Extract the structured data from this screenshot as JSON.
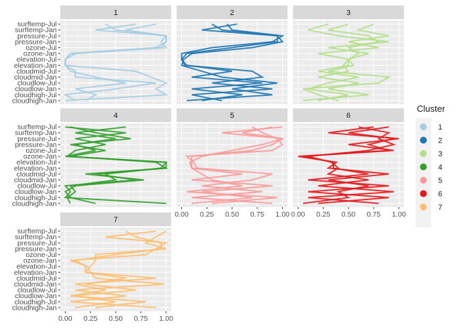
{
  "chart_data": {
    "type": "line",
    "subtype": "parallel-coordinates-faceted",
    "variables": [
      "cloudhigh-Jan",
      "cloudhigh-Jul",
      "cloudlow-Jan",
      "cloudlow-Jul",
      "cloudmid-Jan",
      "cloudmid-Jul",
      "elevation-Jan",
      "elevation-Jul",
      "ozone-Jan",
      "ozone-Jul",
      "pressure-Jan",
      "pressure-Jul",
      "surftemp-Jan",
      "surftemp-Jul"
    ],
    "x_ticks": [
      "0.00",
      "0.25",
      "0.50",
      "0.75",
      "1.00"
    ],
    "xlim": [
      0,
      1
    ],
    "grid": true,
    "legend": {
      "title": "Cluster",
      "placement": "right",
      "entries": [
        "1",
        "2",
        "3",
        "4",
        "5",
        "6",
        "7"
      ]
    },
    "colors": {
      "1": "#A6CEE3",
      "2": "#1F78B4",
      "3": "#B2DF8A",
      "4": "#33A02C",
      "5": "#FB9A99",
      "6": "#E31A1C",
      "7": "#FDBF6F"
    },
    "panels": [
      {
        "label": "1",
        "lines": [
          [
            0.1,
            0.0,
            0.5,
            0.9,
            0.1,
            0.1,
            0.0,
            0.0,
            0.05,
            0.95,
            1.0,
            1.0,
            0.5,
            0.4
          ],
          [
            0.0,
            1.0,
            0.9,
            1.0,
            0.85,
            0.7,
            0.0,
            0.0,
            0.05,
            0.9,
            1.0,
            1.0,
            0.3,
            0.7
          ],
          [
            0.2,
            0.3,
            0.1,
            0.6,
            0.3,
            0.05,
            0.0,
            0.0,
            0.1,
            1.0,
            0.95,
            1.0,
            0.6,
            0.9
          ]
        ]
      },
      {
        "label": "2",
        "lines": [
          [
            0.2,
            0.6,
            0.1,
            0.8,
            0.1,
            0.5,
            0.05,
            0.0,
            0.05,
            0.5,
            0.95,
            0.95,
            0.4,
            0.3
          ],
          [
            0.05,
            0.9,
            0.5,
            0.95,
            0.4,
            0.2,
            0.0,
            0.02,
            0.1,
            0.7,
            1.0,
            0.95,
            0.2,
            0.55
          ],
          [
            0.4,
            0.1,
            0.9,
            0.3,
            0.8,
            0.7,
            0.03,
            0.0,
            0.0,
            0.3,
            0.9,
            1.0,
            0.5,
            0.45
          ]
        ]
      },
      {
        "label": "3",
        "lines": [
          [
            0.2,
            0.5,
            0.1,
            0.3,
            0.6,
            0.2,
            0.5,
            0.5,
            0.6,
            0.5,
            0.8,
            0.7,
            0.3,
            0.5
          ],
          [
            0.05,
            0.7,
            0.3,
            0.6,
            0.2,
            0.5,
            0.45,
            0.5,
            0.2,
            0.8,
            0.5,
            0.9,
            0.6,
            0.75
          ],
          [
            0.4,
            0.2,
            0.05,
            0.8,
            0.9,
            0.3,
            0.55,
            0.5,
            0.7,
            0.3,
            0.9,
            0.4,
            0.1,
            0.3
          ]
        ]
      },
      {
        "label": "4",
        "lines": [
          [
            1.0,
            0.0,
            0.05,
            0.0,
            0.7,
            0.3,
            1.0,
            1.0,
            0.0,
            0.3,
            0.1,
            0.5,
            0.1,
            0.6
          ],
          [
            0.05,
            0.02,
            0.1,
            0.05,
            0.5,
            0.4,
            0.95,
            1.0,
            0.02,
            0.1,
            0.4,
            0.1,
            0.6,
            0.0
          ],
          [
            0.3,
            0.05,
            0.0,
            0.1,
            0.78,
            0.2,
            1.0,
            0.9,
            0.05,
            0.4,
            0.05,
            0.65,
            0.3,
            0.05
          ]
        ]
      },
      {
        "label": "5",
        "lines": [
          [
            0.1,
            0.7,
            0.2,
            0.9,
            0.1,
            0.6,
            0.1,
            0.1,
            0.1,
            0.7,
            0.9,
            1.0,
            0.6,
            0.9
          ],
          [
            0.9,
            0.1,
            0.8,
            0.2,
            0.7,
            0.9,
            0.15,
            0.12,
            0.05,
            0.9,
            1.0,
            0.95,
            0.8,
            0.7
          ],
          [
            0.3,
            0.95,
            0.05,
            0.6,
            0.3,
            0.2,
            0.1,
            0.08,
            0.2,
            0.5,
            0.8,
            1.0,
            0.4,
            1.0
          ]
        ]
      },
      {
        "label": "6",
        "lines": [
          [
            0.2,
            0.9,
            0.1,
            0.9,
            0.1,
            0.7,
            0.35,
            0.35,
            0.05,
            0.9,
            0.7,
            0.95,
            0.5,
            0.9
          ],
          [
            0.8,
            0.1,
            0.95,
            0.2,
            0.7,
            0.3,
            0.4,
            0.33,
            0.1,
            0.7,
            0.95,
            0.8,
            0.9,
            0.6
          ],
          [
            0.05,
            0.5,
            0.4,
            0.7,
            0.3,
            0.9,
            0.3,
            0.38,
            0.0,
            0.95,
            0.5,
            1.0,
            0.3,
            0.75
          ]
        ]
      },
      {
        "label": "7",
        "lines": [
          [
            0.1,
            0.5,
            0.1,
            0.7,
            0.2,
            0.6,
            0.2,
            0.2,
            0.1,
            0.5,
            0.95,
            0.95,
            0.7,
            0.6
          ],
          [
            0.9,
            0.05,
            0.6,
            0.1,
            0.98,
            0.3,
            0.25,
            0.22,
            0.05,
            0.8,
            0.9,
            1.0,
            0.4,
            0.9
          ],
          [
            0.3,
            0.8,
            0.05,
            0.4,
            0.1,
            0.9,
            0.2,
            0.25,
            0.3,
            0.3,
            1.0,
            0.8,
            0.9,
            1.0
          ]
        ]
      }
    ]
  }
}
